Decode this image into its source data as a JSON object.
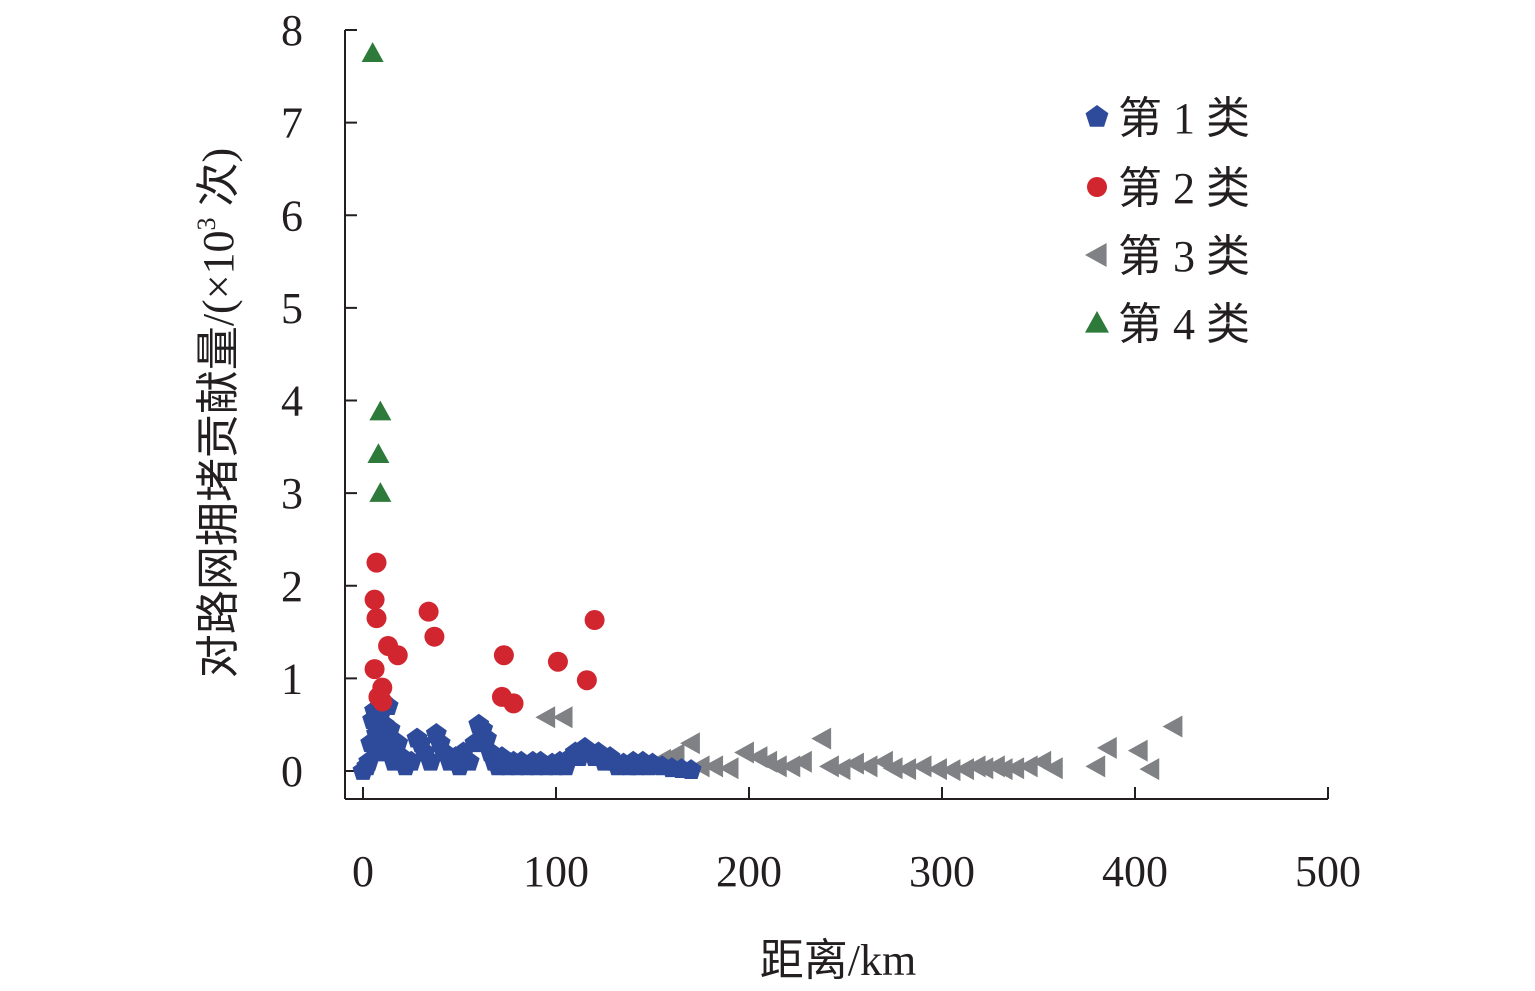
{
  "chart_data": {
    "type": "scatter",
    "title": "",
    "xlabel": "距离/km",
    "ylabel": "对路网拥堵贡献量/(×10³ 次)",
    "ylabel_main": "对路网拥堵贡献量/(×10",
    "ylabel_sup": "3",
    "ylabel_tail": " 次)",
    "xlim": [
      -8,
      500
    ],
    "ylim": [
      -0.3,
      8.0
    ],
    "xticks": [
      0,
      100,
      200,
      300,
      400,
      500
    ],
    "yticks": [
      0,
      1,
      2,
      3,
      4,
      5,
      6,
      7,
      8
    ],
    "grid": false,
    "legend_position": "top-right",
    "series": [
      {
        "name": "第 1 类",
        "marker": "pentagon",
        "color": "#2e4a9a",
        "points": [
          [
            0,
            0.0
          ],
          [
            2,
            0.05
          ],
          [
            3,
            0.1
          ],
          [
            4,
            0.3
          ],
          [
            5,
            0.55
          ],
          [
            6,
            0.65
          ],
          [
            7,
            0.4
          ],
          [
            8,
            0.2
          ],
          [
            9,
            0.6
          ],
          [
            10,
            0.75
          ],
          [
            11,
            0.5
          ],
          [
            12,
            0.3
          ],
          [
            13,
            0.7
          ],
          [
            14,
            0.45
          ],
          [
            15,
            0.2
          ],
          [
            16,
            0.1
          ],
          [
            18,
            0.3
          ],
          [
            20,
            0.15
          ],
          [
            22,
            0.05
          ],
          [
            25,
            0.1
          ],
          [
            28,
            0.35
          ],
          [
            30,
            0.3
          ],
          [
            32,
            0.2
          ],
          [
            35,
            0.1
          ],
          [
            38,
            0.4
          ],
          [
            40,
            0.3
          ],
          [
            42,
            0.2
          ],
          [
            45,
            0.1
          ],
          [
            48,
            0.15
          ],
          [
            50,
            0.05
          ],
          [
            52,
            0.2
          ],
          [
            55,
            0.1
          ],
          [
            58,
            0.3
          ],
          [
            60,
            0.5
          ],
          [
            62,
            0.45
          ],
          [
            64,
            0.35
          ],
          [
            66,
            0.2
          ],
          [
            68,
            0.1
          ],
          [
            70,
            0.05
          ],
          [
            72,
            0.15
          ],
          [
            75,
            0.05
          ],
          [
            78,
            0.1
          ],
          [
            80,
            0.05
          ],
          [
            82,
            0.1
          ],
          [
            85,
            0.05
          ],
          [
            88,
            0.1
          ],
          [
            90,
            0.05
          ],
          [
            92,
            0.1
          ],
          [
            95,
            0.05
          ],
          [
            98,
            0.08
          ],
          [
            100,
            0.05
          ],
          [
            102,
            0.1
          ],
          [
            105,
            0.05
          ],
          [
            108,
            0.15
          ],
          [
            110,
            0.2
          ],
          [
            112,
            0.15
          ],
          [
            115,
            0.25
          ],
          [
            118,
            0.2
          ],
          [
            120,
            0.15
          ],
          [
            122,
            0.2
          ],
          [
            125,
            0.1
          ],
          [
            128,
            0.15
          ],
          [
            130,
            0.1
          ],
          [
            132,
            0.05
          ],
          [
            135,
            0.08
          ],
          [
            138,
            0.05
          ],
          [
            140,
            0.1
          ],
          [
            142,
            0.05
          ],
          [
            145,
            0.1
          ],
          [
            148,
            0.05
          ],
          [
            150,
            0.08
          ],
          [
            155,
            0.05
          ],
          [
            160,
            0.03
          ],
          [
            165,
            0.02
          ],
          [
            170,
            0.01
          ]
        ]
      },
      {
        "name": "第 2 类",
        "marker": "circle",
        "color": "#d1262f",
        "points": [
          [
            7,
            2.25
          ],
          [
            6,
            1.85
          ],
          [
            7,
            1.65
          ],
          [
            6,
            1.1
          ],
          [
            8,
            0.8
          ],
          [
            10,
            0.9
          ],
          [
            10,
            0.75
          ],
          [
            13,
            1.35
          ],
          [
            18,
            1.25
          ],
          [
            34,
            1.72
          ],
          [
            37,
            1.45
          ],
          [
            73,
            1.25
          ],
          [
            72,
            0.8
          ],
          [
            78,
            0.73
          ],
          [
            101,
            1.18
          ],
          [
            116,
            0.98
          ],
          [
            120,
            1.63
          ]
        ]
      },
      {
        "name": "第 3 类",
        "marker": "triangle-left",
        "color": "#7f8185",
        "points": [
          [
            95,
            0.58
          ],
          [
            104,
            0.58
          ],
          [
            155,
            0.12
          ],
          [
            162,
            0.18
          ],
          [
            170,
            0.3
          ],
          [
            175,
            0.05
          ],
          [
            182,
            0.05
          ],
          [
            190,
            0.03
          ],
          [
            198,
            0.2
          ],
          [
            205,
            0.15
          ],
          [
            210,
            0.1
          ],
          [
            215,
            0.05
          ],
          [
            222,
            0.05
          ],
          [
            228,
            0.1
          ],
          [
            238,
            0.35
          ],
          [
            242,
            0.05
          ],
          [
            248,
            0.02
          ],
          [
            255,
            0.08
          ],
          [
            262,
            0.05
          ],
          [
            270,
            0.1
          ],
          [
            275,
            0.03
          ],
          [
            282,
            0.02
          ],
          [
            290,
            0.05
          ],
          [
            298,
            0.02
          ],
          [
            305,
            0.01
          ],
          [
            312,
            0.02
          ],
          [
            318,
            0.05
          ],
          [
            322,
            0.03
          ],
          [
            328,
            0.05
          ],
          [
            332,
            0.02
          ],
          [
            338,
            0.03
          ],
          [
            345,
            0.05
          ],
          [
            352,
            0.1
          ],
          [
            358,
            0.03
          ],
          [
            380,
            0.05
          ],
          [
            386,
            0.25
          ],
          [
            402,
            0.22
          ],
          [
            408,
            0.02
          ],
          [
            420,
            0.48
          ]
        ]
      },
      {
        "name": "第 4 类",
        "marker": "triangle-up",
        "color": "#2e7a3a",
        "points": [
          [
            5,
            7.75
          ],
          [
            9,
            3.88
          ],
          [
            8,
            3.42
          ],
          [
            9,
            3.0
          ]
        ]
      }
    ]
  }
}
